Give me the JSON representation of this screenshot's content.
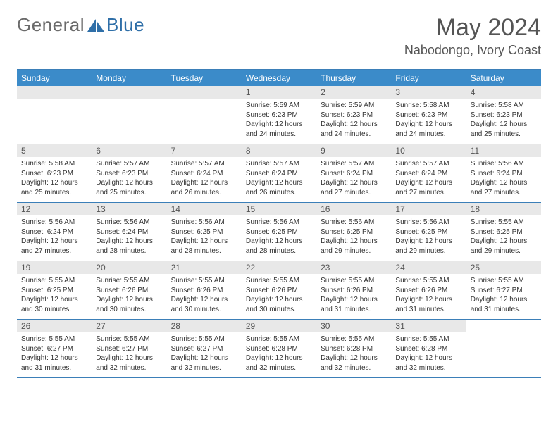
{
  "logo": {
    "text1": "General",
    "text2": "Blue",
    "sail_color": "#2f6fa8",
    "text_color": "#6b6b6b"
  },
  "title": "May 2024",
  "location": "Nabodongo, Ivory Coast",
  "header_bg": "#3b8bc9",
  "border_color": "#3b7fb8",
  "daynum_bg": "#e8e8e8",
  "weekdays": [
    "Sunday",
    "Monday",
    "Tuesday",
    "Wednesday",
    "Thursday",
    "Friday",
    "Saturday"
  ],
  "weeks": [
    [
      null,
      null,
      null,
      {
        "n": "1",
        "sunrise": "5:59 AM",
        "sunset": "6:23 PM",
        "daylight": "12 hours and 24 minutes."
      },
      {
        "n": "2",
        "sunrise": "5:59 AM",
        "sunset": "6:23 PM",
        "daylight": "12 hours and 24 minutes."
      },
      {
        "n": "3",
        "sunrise": "5:58 AM",
        "sunset": "6:23 PM",
        "daylight": "12 hours and 24 minutes."
      },
      {
        "n": "4",
        "sunrise": "5:58 AM",
        "sunset": "6:23 PM",
        "daylight": "12 hours and 25 minutes."
      }
    ],
    [
      {
        "n": "5",
        "sunrise": "5:58 AM",
        "sunset": "6:23 PM",
        "daylight": "12 hours and 25 minutes."
      },
      {
        "n": "6",
        "sunrise": "5:57 AM",
        "sunset": "6:23 PM",
        "daylight": "12 hours and 25 minutes."
      },
      {
        "n": "7",
        "sunrise": "5:57 AM",
        "sunset": "6:24 PM",
        "daylight": "12 hours and 26 minutes."
      },
      {
        "n": "8",
        "sunrise": "5:57 AM",
        "sunset": "6:24 PM",
        "daylight": "12 hours and 26 minutes."
      },
      {
        "n": "9",
        "sunrise": "5:57 AM",
        "sunset": "6:24 PM",
        "daylight": "12 hours and 27 minutes."
      },
      {
        "n": "10",
        "sunrise": "5:57 AM",
        "sunset": "6:24 PM",
        "daylight": "12 hours and 27 minutes."
      },
      {
        "n": "11",
        "sunrise": "5:56 AM",
        "sunset": "6:24 PM",
        "daylight": "12 hours and 27 minutes."
      }
    ],
    [
      {
        "n": "12",
        "sunrise": "5:56 AM",
        "sunset": "6:24 PM",
        "daylight": "12 hours and 27 minutes."
      },
      {
        "n": "13",
        "sunrise": "5:56 AM",
        "sunset": "6:24 PM",
        "daylight": "12 hours and 28 minutes."
      },
      {
        "n": "14",
        "sunrise": "5:56 AM",
        "sunset": "6:25 PM",
        "daylight": "12 hours and 28 minutes."
      },
      {
        "n": "15",
        "sunrise": "5:56 AM",
        "sunset": "6:25 PM",
        "daylight": "12 hours and 28 minutes."
      },
      {
        "n": "16",
        "sunrise": "5:56 AM",
        "sunset": "6:25 PM",
        "daylight": "12 hours and 29 minutes."
      },
      {
        "n": "17",
        "sunrise": "5:56 AM",
        "sunset": "6:25 PM",
        "daylight": "12 hours and 29 minutes."
      },
      {
        "n": "18",
        "sunrise": "5:55 AM",
        "sunset": "6:25 PM",
        "daylight": "12 hours and 29 minutes."
      }
    ],
    [
      {
        "n": "19",
        "sunrise": "5:55 AM",
        "sunset": "6:25 PM",
        "daylight": "12 hours and 30 minutes."
      },
      {
        "n": "20",
        "sunrise": "5:55 AM",
        "sunset": "6:26 PM",
        "daylight": "12 hours and 30 minutes."
      },
      {
        "n": "21",
        "sunrise": "5:55 AM",
        "sunset": "6:26 PM",
        "daylight": "12 hours and 30 minutes."
      },
      {
        "n": "22",
        "sunrise": "5:55 AM",
        "sunset": "6:26 PM",
        "daylight": "12 hours and 30 minutes."
      },
      {
        "n": "23",
        "sunrise": "5:55 AM",
        "sunset": "6:26 PM",
        "daylight": "12 hours and 31 minutes."
      },
      {
        "n": "24",
        "sunrise": "5:55 AM",
        "sunset": "6:26 PM",
        "daylight": "12 hours and 31 minutes."
      },
      {
        "n": "25",
        "sunrise": "5:55 AM",
        "sunset": "6:27 PM",
        "daylight": "12 hours and 31 minutes."
      }
    ],
    [
      {
        "n": "26",
        "sunrise": "5:55 AM",
        "sunset": "6:27 PM",
        "daylight": "12 hours and 31 minutes."
      },
      {
        "n": "27",
        "sunrise": "5:55 AM",
        "sunset": "6:27 PM",
        "daylight": "12 hours and 32 minutes."
      },
      {
        "n": "28",
        "sunrise": "5:55 AM",
        "sunset": "6:27 PM",
        "daylight": "12 hours and 32 minutes."
      },
      {
        "n": "29",
        "sunrise": "5:55 AM",
        "sunset": "6:28 PM",
        "daylight": "12 hours and 32 minutes."
      },
      {
        "n": "30",
        "sunrise": "5:55 AM",
        "sunset": "6:28 PM",
        "daylight": "12 hours and 32 minutes."
      },
      {
        "n": "31",
        "sunrise": "5:55 AM",
        "sunset": "6:28 PM",
        "daylight": "12 hours and 32 minutes."
      },
      null
    ]
  ],
  "labels": {
    "sunrise": "Sunrise:",
    "sunset": "Sunset:",
    "daylight": "Daylight:"
  }
}
